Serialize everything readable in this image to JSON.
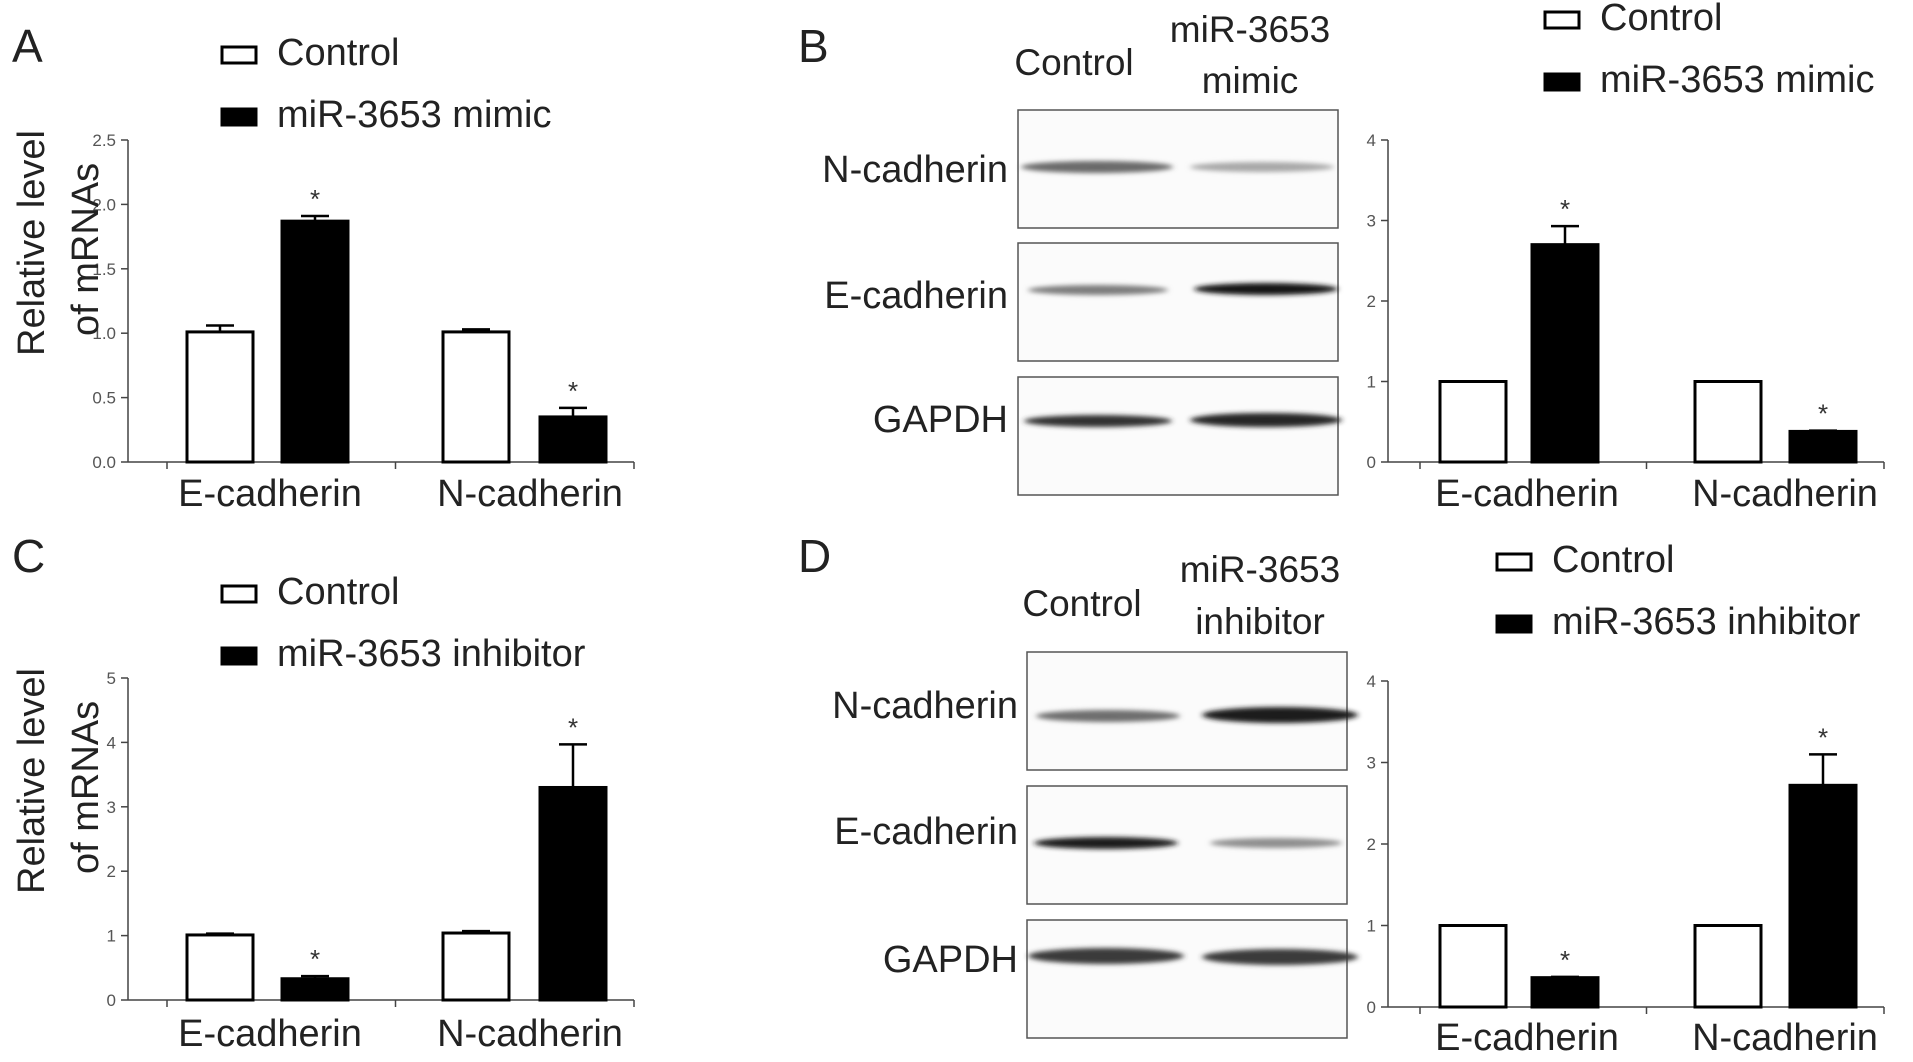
{
  "panels": {
    "A": {
      "letter": "A"
    },
    "B": {
      "letter": "B"
    },
    "C": {
      "letter": "C"
    },
    "D": {
      "letter": "D"
    }
  },
  "blots": {
    "B": {
      "col_control": "Control",
      "col_treat_line1": "miR-3653",
      "col_treat_line2": "mimic",
      "lanes": [
        "N-cadherin",
        "E-cadherin",
        "GAPDH"
      ]
    },
    "D": {
      "col_control": "Control",
      "col_treat_line1": "miR-3653",
      "col_treat_line2": "inhibitor",
      "lanes": [
        "N-cadherin",
        "E-cadherin",
        "GAPDH"
      ]
    }
  },
  "colors": {
    "control_fill": "#ffffff",
    "treat_fill": "#000000",
    "stroke": "#000000"
  },
  "chart_data": [
    {
      "panel": "A",
      "type": "bar",
      "categories": [
        "E-cadherin",
        "N-cadherin"
      ],
      "series": [
        {
          "name": "Control",
          "values": [
            1.01,
            1.01
          ],
          "errors": [
            0.05,
            0.02
          ],
          "significant": [
            false,
            false
          ]
        },
        {
          "name": "miR-3653 mimic",
          "values": [
            1.87,
            0.35
          ],
          "errors": [
            0.04,
            0.07
          ],
          "significant": [
            true,
            true
          ]
        }
      ],
      "ylabel_line1": "Relative level",
      "ylabel_line2": "of mRNAs",
      "ylim": [
        0,
        2.5
      ],
      "yticks": [
        "0.0",
        "0.5",
        "1.0",
        "1.5",
        "2.0",
        "2.5"
      ],
      "ytick_values": [
        0,
        0.5,
        1.0,
        1.5,
        2.0,
        2.5
      ],
      "significance_label": "*",
      "legend": "top"
    },
    {
      "panel": "B",
      "type": "bar",
      "categories": [
        "E-cadherin",
        "N-cadherin"
      ],
      "series": [
        {
          "name": "Control",
          "values": [
            1.0,
            1.0
          ],
          "errors": [
            0,
            0
          ],
          "significant": [
            false,
            false
          ]
        },
        {
          "name": "miR-3653 mimic",
          "values": [
            2.7,
            0.38
          ],
          "errors": [
            0.23,
            0.01
          ],
          "significant": [
            true,
            true
          ]
        }
      ],
      "ylim": [
        0,
        4
      ],
      "yticks": [
        "0",
        "1",
        "2",
        "3",
        "4"
      ],
      "ytick_values": [
        0,
        1,
        2,
        3,
        4
      ],
      "significance_label": "*",
      "legend": "top"
    },
    {
      "panel": "C",
      "type": "bar",
      "categories": [
        "E-cadherin",
        "N-cadherin"
      ],
      "series": [
        {
          "name": "Control",
          "values": [
            1.01,
            1.04
          ],
          "errors": [
            0.02,
            0.03
          ],
          "significant": [
            false,
            false
          ]
        },
        {
          "name": "miR-3653 inhibitor",
          "values": [
            0.33,
            3.3
          ],
          "errors": [
            0.04,
            0.67
          ],
          "significant": [
            true,
            true
          ]
        }
      ],
      "ylabel_line1": "Relative level",
      "ylabel_line2": "of mRNAs",
      "ylim": [
        0,
        5
      ],
      "yticks": [
        "0",
        "1",
        "2",
        "3",
        "4",
        "5"
      ],
      "ytick_values": [
        0,
        1,
        2,
        3,
        4,
        5
      ],
      "significance_label": "*",
      "legend": "top"
    },
    {
      "panel": "D",
      "type": "bar",
      "categories": [
        "E-cadherin",
        "N-cadherin"
      ],
      "series": [
        {
          "name": "Control",
          "values": [
            1.0,
            1.0
          ],
          "errors": [
            0,
            0
          ],
          "significant": [
            false,
            false
          ]
        },
        {
          "name": "miR-3653 inhibitor",
          "values": [
            0.36,
            2.72
          ],
          "errors": [
            0.01,
            0.38
          ],
          "significant": [
            true,
            true
          ]
        }
      ],
      "ylim": [
        0,
        4
      ],
      "yticks": [
        "0",
        "1",
        "2",
        "3",
        "4"
      ],
      "ytick_values": [
        0,
        1,
        2,
        3,
        4
      ],
      "significance_label": "*",
      "legend": "top"
    }
  ]
}
